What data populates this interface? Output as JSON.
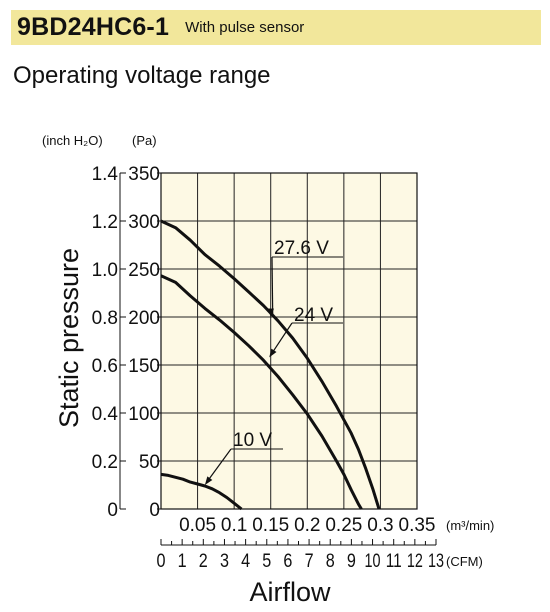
{
  "header": {
    "model": "9BD24HC6-1",
    "subtitle": "With pulse sensor",
    "background": "#f2e79b"
  },
  "section_title": "Operating voltage range",
  "chart_data": {
    "type": "line",
    "plot_background": "#fdf9e4",
    "grid": true,
    "xlabel": "Airflow",
    "ylabel": "Static pressure",
    "x_unit": "(m³/min)",
    "y_units": {
      "left": "(inch H₂O)",
      "right": "(Pa)"
    },
    "xlim": [
      0,
      0.35
    ],
    "ylim": [
      0,
      350
    ],
    "x_ticks": [
      {
        "value": 0.05,
        "label": "0.05"
      },
      {
        "value": 0.1,
        "label": "0.1"
      },
      {
        "value": 0.15,
        "label": "0.15"
      },
      {
        "value": 0.2,
        "label": "0.2"
      },
      {
        "value": 0.25,
        "label": "0.25"
      },
      {
        "value": 0.3,
        "label": "0.3"
      },
      {
        "value": 0.35,
        "label": "0.35"
      }
    ],
    "y_ticks_pa": [
      {
        "value": 0,
        "label": "0"
      },
      {
        "value": 50,
        "label": "50"
      },
      {
        "value": 100,
        "label": "100"
      },
      {
        "value": 150,
        "label": "150"
      },
      {
        "value": 200,
        "label": "200"
      },
      {
        "value": 250,
        "label": "250"
      },
      {
        "value": 300,
        "label": "300"
      },
      {
        "value": 350,
        "label": "350"
      }
    ],
    "y_ticks_inch": [
      {
        "value": 0,
        "label": "0"
      },
      {
        "value": 0.2,
        "label": "0.2"
      },
      {
        "value": 0.4,
        "label": "0.4"
      },
      {
        "value": 0.6,
        "label": "0.6"
      },
      {
        "value": 0.8,
        "label": "0.8"
      },
      {
        "value": 1.0,
        "label": "1.0"
      },
      {
        "value": 1.2,
        "label": "1.2"
      },
      {
        "value": 1.4,
        "label": "1.4"
      }
    ],
    "cfm_axis": {
      "unit": "(CFM)",
      "max": 13,
      "labels": [
        "0",
        "1",
        "2",
        "3",
        "4",
        "5",
        "6",
        "7",
        "8",
        "9",
        "10",
        "11",
        "12",
        "13"
      ]
    },
    "series": [
      {
        "name": "27.6 V",
        "x": [
          0,
          0.02,
          0.04,
          0.06,
          0.08,
          0.1,
          0.12,
          0.14,
          0.16,
          0.18,
          0.2,
          0.22,
          0.24,
          0.26,
          0.27,
          0.28,
          0.29,
          0.298
        ],
        "y": [
          300,
          293,
          280,
          265,
          253,
          240,
          226,
          212,
          196,
          178,
          157,
          133,
          107,
          79,
          62,
          42,
          20,
          0
        ],
        "label_at": {
          "x": 0.15,
          "y": 200
        }
      },
      {
        "name": "24 V",
        "x": [
          0,
          0.02,
          0.04,
          0.06,
          0.08,
          0.1,
          0.12,
          0.14,
          0.16,
          0.18,
          0.2,
          0.22,
          0.24,
          0.25,
          0.26,
          0.27,
          0.274
        ],
        "y": [
          243,
          236,
          222,
          209,
          197,
          184,
          170,
          155,
          138,
          119,
          99,
          76,
          50,
          36,
          20,
          5,
          0
        ],
        "label_at": {
          "x": 0.148,
          "y": 158
        }
      },
      {
        "name": "10 V",
        "x": [
          0,
          0.01,
          0.02,
          0.03,
          0.04,
          0.05,
          0.06,
          0.07,
          0.08,
          0.09,
          0.1,
          0.11
        ],
        "y": [
          36,
          35,
          33,
          31,
          28,
          26,
          24,
          21,
          17,
          12,
          6,
          0
        ],
        "label_at": {
          "x": 0.06,
          "y": 25
        }
      }
    ]
  }
}
